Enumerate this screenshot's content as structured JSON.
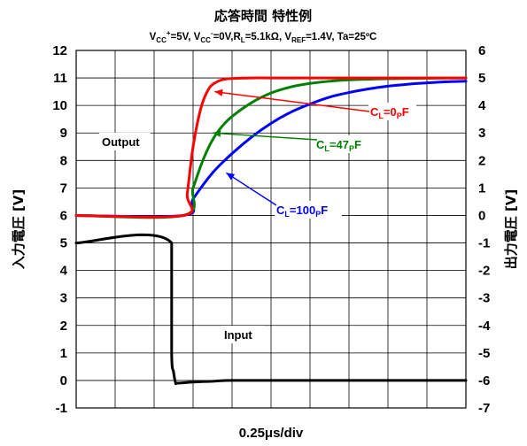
{
  "chart_data": {
    "type": "line",
    "title": "応答時間 特性例",
    "subtitle_parts": {
      "a1": "V",
      "a1s": "CC",
      "a1p": "+",
      "a1r": "=5V, ",
      "a2": "V",
      "a2s": "CC",
      "a2p": "-",
      "a2r": "=0V,",
      "a3": "R",
      "a3s": "L",
      "a3r": "=5.1kΩ, ",
      "a4": "V",
      "a4s": "REF",
      "a4r": "=1.4V, Ta=25ºC"
    },
    "xlabel": "0.25μs/div",
    "ylabel_left": "入力電圧 [V]",
    "ylabel_right": "出力電圧 [V]",
    "x_divisions": 10,
    "y_left": {
      "min": -1,
      "max": 12,
      "ticks": [
        "-1",
        "0",
        "1",
        "2",
        "3",
        "4",
        "5",
        "6",
        "7",
        "8",
        "9",
        "10",
        "11",
        "12"
      ]
    },
    "y_right": {
      "min": -7,
      "max": 6,
      "ticks": [
        "-7",
        "-6",
        "-5",
        "-4",
        "-3",
        "-2",
        "-1",
        "0",
        "1",
        "2",
        "3",
        "4",
        "5",
        "6"
      ]
    },
    "grid": true,
    "series": [
      {
        "name": "C_L=0pF",
        "axis": "right",
        "color": "#ff0000",
        "x": [
          0,
          2.75,
          2.85,
          3.0,
          3.2,
          3.4,
          3.6,
          3.8,
          4.0,
          4.5,
          5.0,
          6.0,
          8.0,
          10.0
        ],
        "y": [
          0,
          0,
          0.8,
          2.5,
          3.9,
          4.6,
          4.85,
          4.95,
          4.98,
          5.0,
          5.0,
          5.0,
          5.0,
          5.0
        ]
      },
      {
        "name": "C_L=47pF",
        "axis": "right",
        "color": "#008000",
        "x": [
          0,
          2.75,
          3.0,
          3.25,
          3.5,
          3.75,
          4.0,
          4.5,
          5.0,
          5.5,
          6.0,
          6.5,
          7.0,
          8.0,
          9.0,
          10.0
        ],
        "y": [
          0,
          0,
          1.0,
          2.0,
          2.75,
          3.25,
          3.6,
          4.1,
          4.45,
          4.67,
          4.8,
          4.88,
          4.93,
          4.97,
          4.99,
          5.0
        ]
      },
      {
        "name": "C_L=100pF",
        "axis": "right",
        "color": "#0000ff",
        "x": [
          0,
          2.75,
          3.0,
          3.5,
          4.0,
          4.5,
          5.0,
          5.5,
          6.0,
          6.5,
          7.0,
          7.5,
          8.0,
          8.5,
          9.0,
          9.5,
          10.0
        ],
        "y": [
          0,
          0,
          0.6,
          1.55,
          2.25,
          2.85,
          3.35,
          3.75,
          4.05,
          4.3,
          4.47,
          4.6,
          4.7,
          4.77,
          4.82,
          4.86,
          4.88
        ]
      },
      {
        "name": "Input",
        "axis": "left",
        "color": "#000000",
        "x": [
          0,
          2.45,
          2.45,
          2.5,
          2.55,
          2.6,
          3.0,
          3.5,
          4.0,
          6.0,
          10.0
        ],
        "y": [
          5,
          5,
          1.0,
          0.3,
          -0.08,
          -0.1,
          -0.06,
          -0.03,
          0.0,
          0.0,
          0.0
        ]
      }
    ],
    "annotations": [
      {
        "text": "Output",
        "type": "label",
        "color": "#000000"
      },
      {
        "text": "Input",
        "type": "label",
        "color": "#000000"
      },
      {
        "text": "C",
        "sub": "L",
        "rest1": "=0",
        "sub2": "P",
        "rest2": "F",
        "color": "#ff0000",
        "arrow_to": [
          3.55,
          4.5
        ]
      },
      {
        "text": "C",
        "sub": "L",
        "rest1": "=47",
        "sub2": "P",
        "rest2": "F",
        "color": "#008000",
        "arrow_to": [
          3.5,
          3.0
        ]
      },
      {
        "text": "C",
        "sub": "L",
        "rest1": "=100",
        "sub2": "P",
        "rest2": "F",
        "color": "#0000ff",
        "arrow_to": [
          3.85,
          1.55
        ]
      }
    ]
  }
}
